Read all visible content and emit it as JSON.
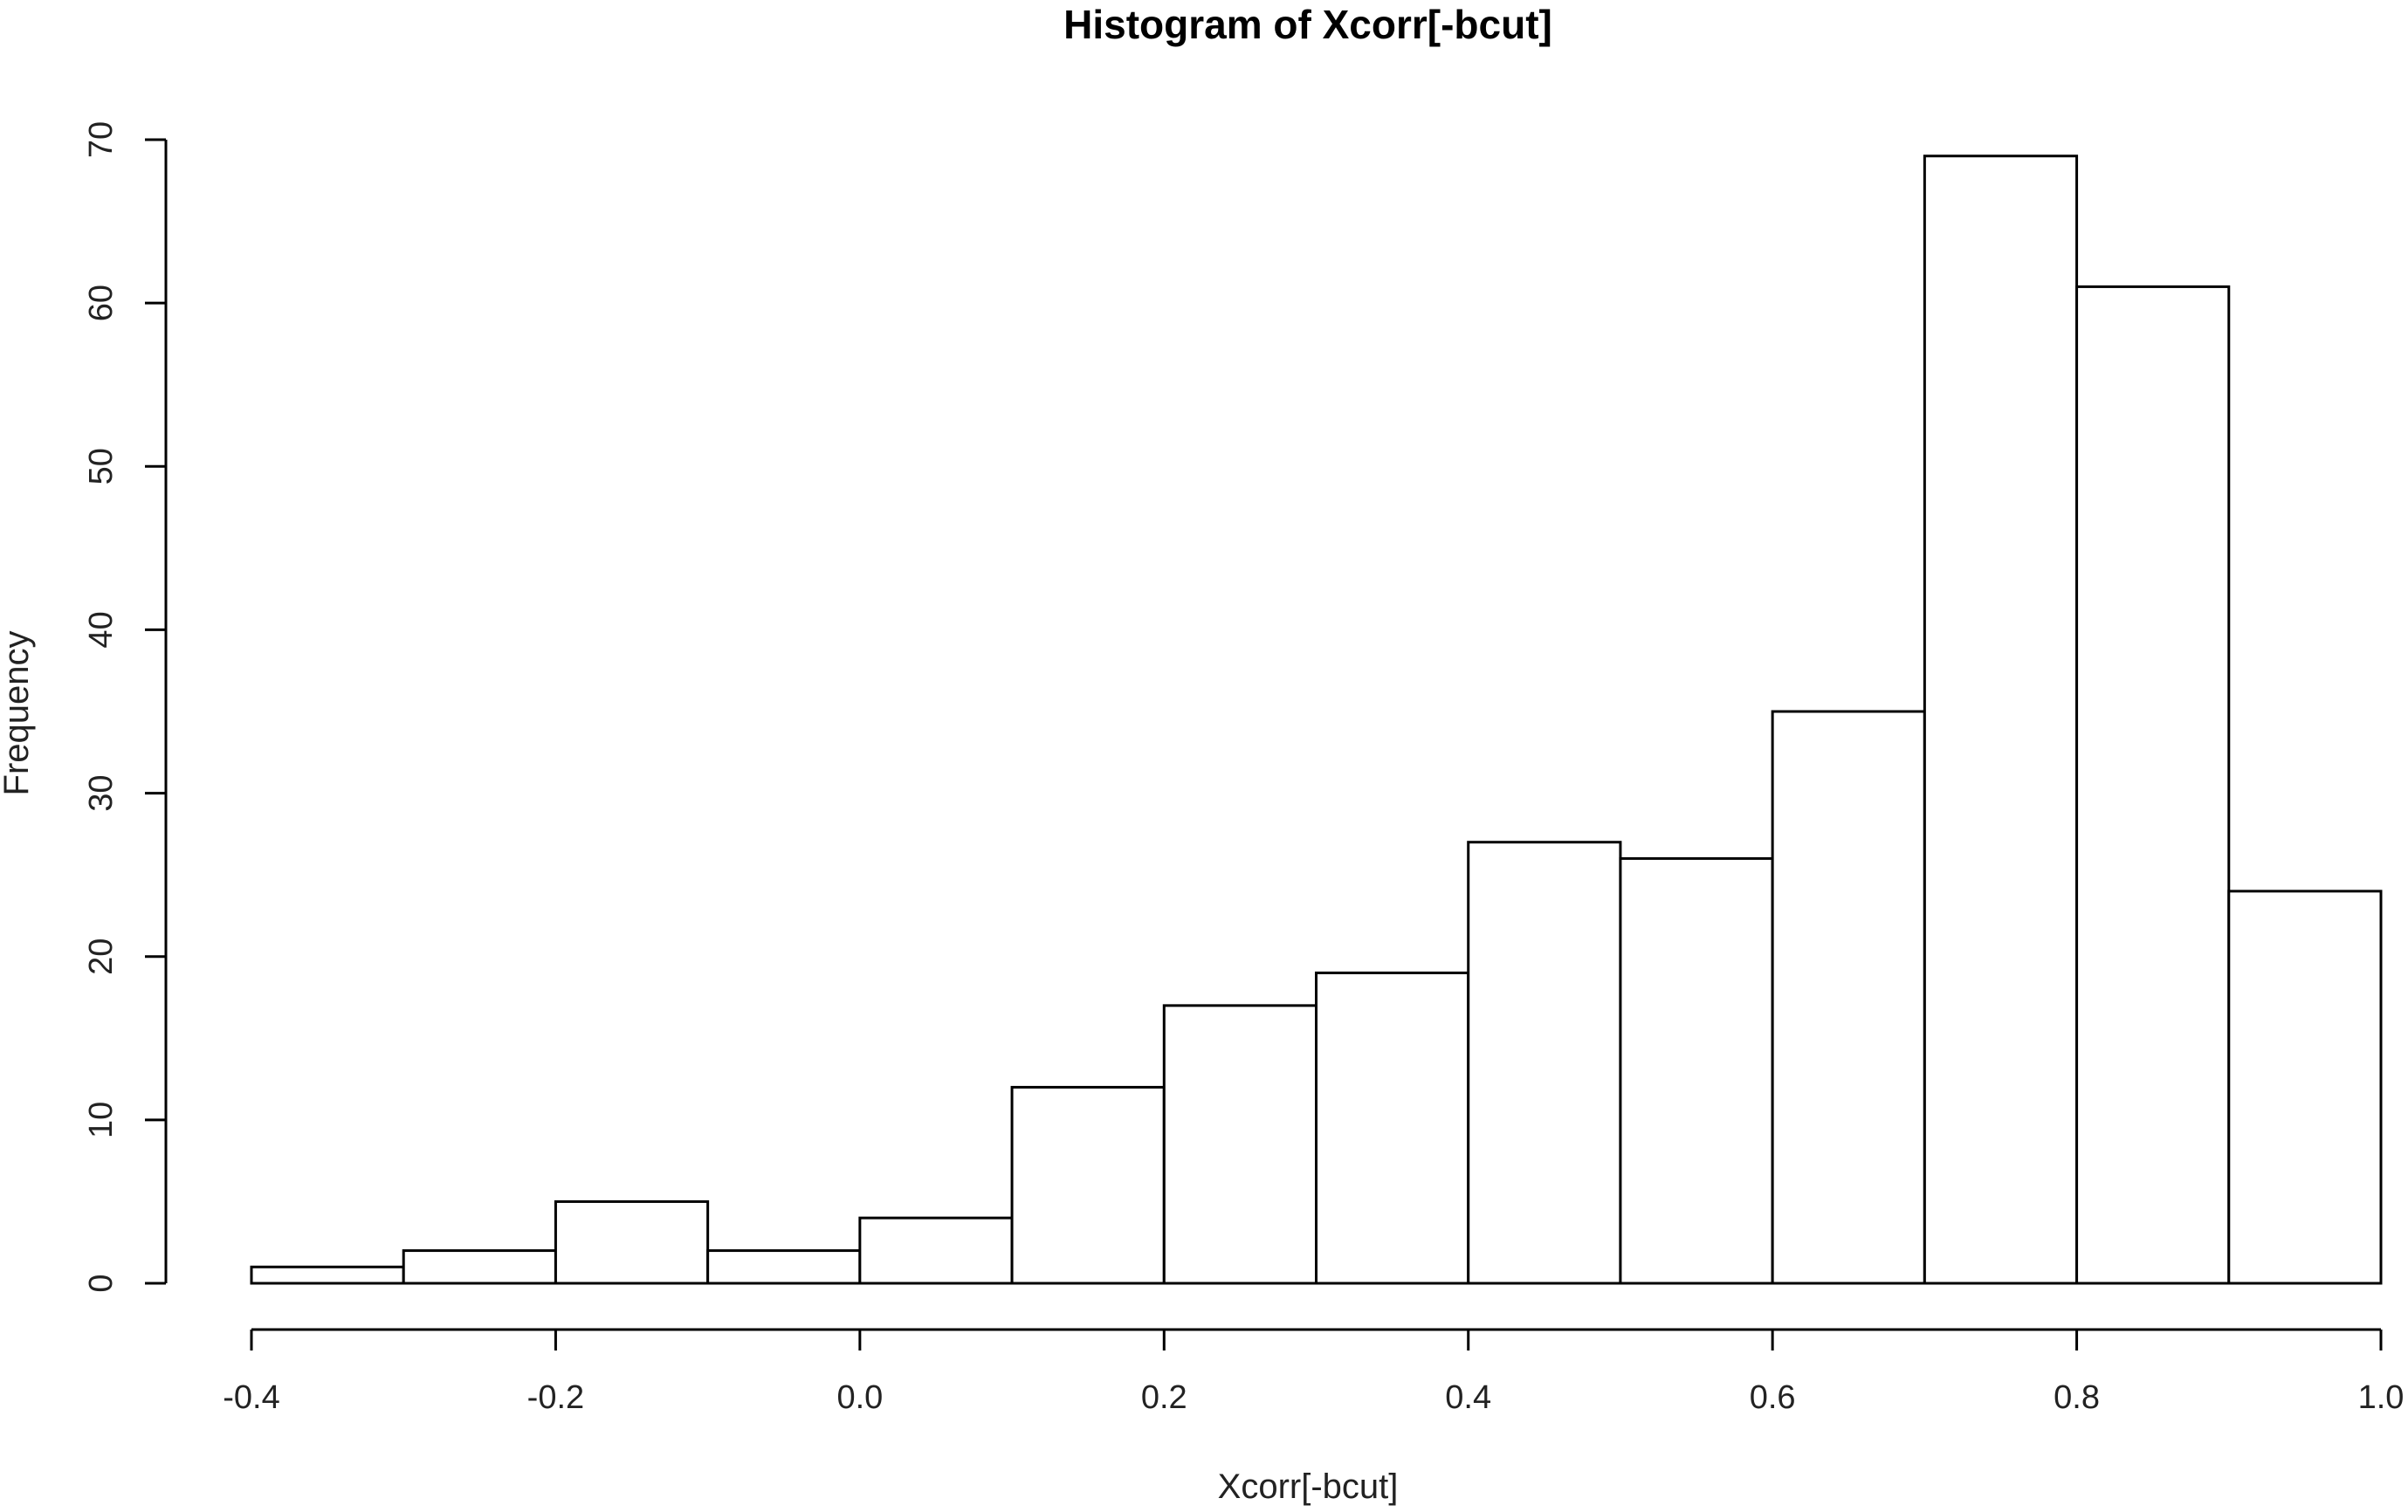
{
  "chart_data": {
    "type": "bar",
    "title": "Histogram of Xcorr[-bcut]",
    "xlabel": "Xcorr[-bcut]",
    "ylabel": "Frequency",
    "bins": [
      {
        "x0": -0.4,
        "x1": -0.3,
        "count": 1
      },
      {
        "x0": -0.3,
        "x1": -0.2,
        "count": 2
      },
      {
        "x0": -0.2,
        "x1": -0.1,
        "count": 5
      },
      {
        "x0": -0.1,
        "x1": 0.0,
        "count": 2
      },
      {
        "x0": 0.0,
        "x1": 0.1,
        "count": 4
      },
      {
        "x0": 0.1,
        "x1": 0.2,
        "count": 12
      },
      {
        "x0": 0.2,
        "x1": 0.3,
        "count": 17
      },
      {
        "x0": 0.3,
        "x1": 0.4,
        "count": 19
      },
      {
        "x0": 0.4,
        "x1": 0.5,
        "count": 27
      },
      {
        "x0": 0.5,
        "x1": 0.6,
        "count": 26
      },
      {
        "x0": 0.6,
        "x1": 0.7,
        "count": 35
      },
      {
        "x0": 0.7,
        "x1": 0.8,
        "count": 69
      },
      {
        "x0": 0.8,
        "x1": 0.9,
        "count": 61
      },
      {
        "x0": 0.9,
        "x1": 1.0,
        "count": 24
      }
    ],
    "xlim": [
      -0.4,
      1.0
    ],
    "ylim": [
      0,
      70
    ],
    "xticks": [
      {
        "value": -0.4,
        "label": "-0.4"
      },
      {
        "value": -0.2,
        "label": "-0.2"
      },
      {
        "value": 0.0,
        "label": "0.0"
      },
      {
        "value": 0.2,
        "label": "0.2"
      },
      {
        "value": 0.4,
        "label": "0.4"
      },
      {
        "value": 0.6,
        "label": "0.6"
      },
      {
        "value": 0.8,
        "label": "0.8"
      },
      {
        "value": 1.0,
        "label": "1.0"
      }
    ],
    "yticks": [
      {
        "value": 0,
        "label": "0"
      },
      {
        "value": 10,
        "label": "10"
      },
      {
        "value": 20,
        "label": "20"
      },
      {
        "value": 30,
        "label": "30"
      },
      {
        "value": 40,
        "label": "40"
      },
      {
        "value": 50,
        "label": "50"
      },
      {
        "value": 60,
        "label": "60"
      },
      {
        "value": 70,
        "label": "70"
      }
    ],
    "grid": false,
    "legend": "none",
    "bar_fill": "#ffffff",
    "bar_stroke": "#000000"
  }
}
